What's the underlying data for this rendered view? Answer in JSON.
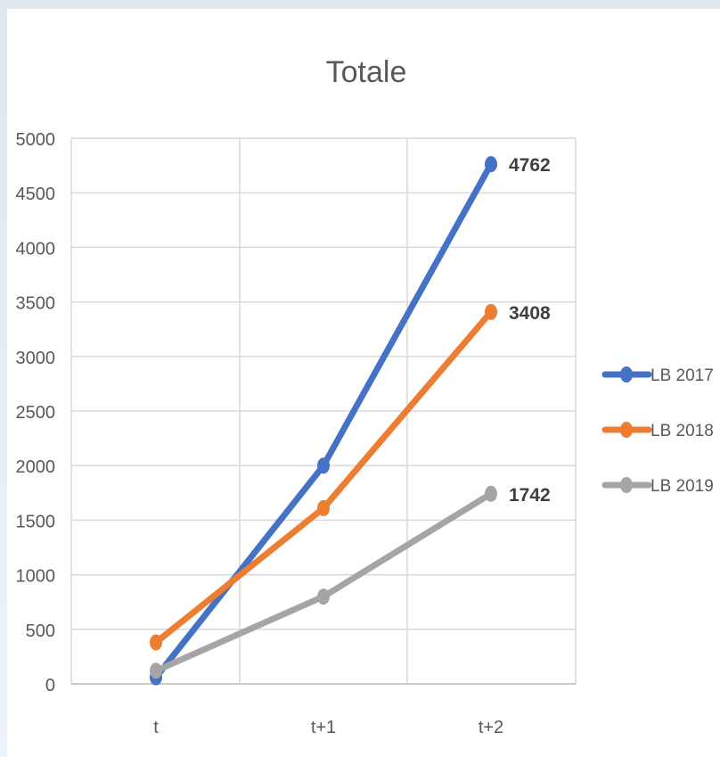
{
  "chart_data": {
    "type": "line",
    "title": "Totale",
    "categories": [
      "t",
      "t+1",
      "t+2"
    ],
    "ylim": [
      0,
      5000
    ],
    "yticks": [
      0,
      500,
      1000,
      1500,
      2000,
      2500,
      3000,
      3500,
      4000,
      4500,
      5000
    ],
    "grid": true,
    "legend_position": "right",
    "series": [
      {
        "name": "LB 2017",
        "color": "#4472c4",
        "values": [
          60,
          2000,
          4762
        ],
        "end_label": "4762"
      },
      {
        "name": "LB 2018",
        "color": "#ed7d31",
        "values": [
          380,
          1610,
          3408
        ],
        "end_label": "3408"
      },
      {
        "name": "LB 2019",
        "color": "#a5a5a5",
        "values": [
          120,
          800,
          1742
        ],
        "end_label": "1742"
      }
    ]
  }
}
